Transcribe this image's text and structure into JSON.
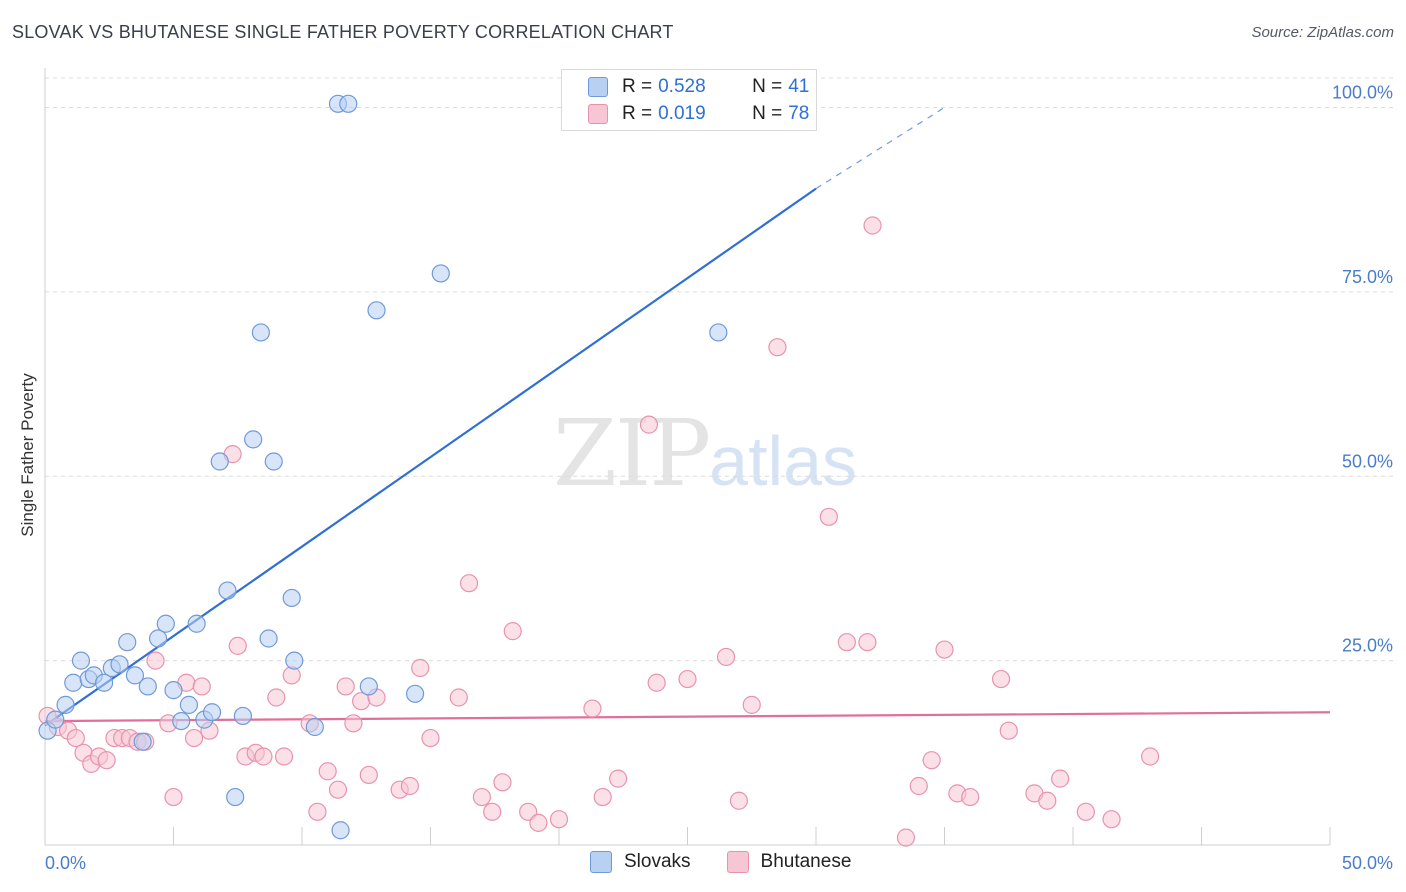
{
  "title": "SLOVAK VS BHUTANESE SINGLE FATHER POVERTY CORRELATION CHART",
  "source": "Source: ZipAtlas.com",
  "watermark": {
    "zip": "ZIP",
    "atlas": "atlas"
  },
  "colors": {
    "slovaks_fill": "#b8d0f2",
    "slovaks_stroke": "#6f9ad8",
    "slovaks_line": "#2f6fd6",
    "bhutanese_fill": "#f7c6d4",
    "bhutanese_stroke": "#e893ae",
    "bhutanese_line": "#e0709a"
  },
  "legend": {
    "slovaks": {
      "r_label": "R =",
      "r_value": "0.528",
      "n_label": "N =",
      "n_value": "41"
    },
    "bhutanese": {
      "r_label": "R =",
      "r_value": "0.019",
      "n_label": "N =",
      "n_value": "78"
    }
  },
  "chart_data": {
    "type": "scatter",
    "title": "SLOVAK VS BHUTANESE SINGLE FATHER POVERTY CORRELATION CHART",
    "xlabel": "",
    "ylabel": "Single Father Poverty",
    "xlim": [
      0,
      50
    ],
    "ylim": [
      0,
      100
    ],
    "x_tick_labels": [
      "0.0%",
      "50.0%"
    ],
    "y_tick_labels": [
      "25.0%",
      "50.0%",
      "75.0%",
      "100.0%"
    ],
    "y_ticks": [
      25,
      50,
      75,
      100
    ],
    "grid": true,
    "legend_position": "top-center",
    "series": [
      {
        "name": "Slovaks",
        "regression": {
          "x0": 0,
          "y0": 16.2,
          "x1": 30,
          "y1": 89,
          "dash_to_x": 35,
          "dash_to_y": 100
        },
        "points": [
          [
            0.1,
            15.5
          ],
          [
            0.4,
            17.0
          ],
          [
            0.8,
            19.0
          ],
          [
            1.1,
            22.0
          ],
          [
            1.4,
            25.0
          ],
          [
            1.7,
            22.5
          ],
          [
            1.9,
            23.0
          ],
          [
            2.3,
            22.0
          ],
          [
            2.6,
            24.0
          ],
          [
            2.9,
            24.5
          ],
          [
            3.2,
            27.5
          ],
          [
            3.5,
            23.0
          ],
          [
            3.8,
            14.0
          ],
          [
            4.0,
            21.5
          ],
          [
            4.4,
            28.0
          ],
          [
            4.7,
            30.0
          ],
          [
            5.0,
            21.0
          ],
          [
            5.3,
            16.8
          ],
          [
            5.6,
            19.0
          ],
          [
            5.9,
            30.0
          ],
          [
            6.2,
            17.0
          ],
          [
            6.5,
            18.0
          ],
          [
            6.8,
            52.0
          ],
          [
            7.1,
            34.5
          ],
          [
            7.4,
            6.5
          ],
          [
            7.7,
            17.5
          ],
          [
            8.1,
            55.0
          ],
          [
            8.4,
            69.5
          ],
          [
            8.7,
            28.0
          ],
          [
            8.9,
            52.0
          ],
          [
            9.6,
            33.5
          ],
          [
            9.7,
            25.0
          ],
          [
            10.5,
            16.0
          ],
          [
            11.4,
            100.5
          ],
          [
            11.8,
            100.5
          ],
          [
            11.5,
            2.0
          ],
          [
            12.6,
            21.5
          ],
          [
            12.9,
            72.5
          ],
          [
            14.4,
            20.5
          ],
          [
            15.4,
            77.5
          ],
          [
            26.2,
            69.5
          ]
        ]
      },
      {
        "name": "Bhutanese",
        "regression": {
          "x0": 0,
          "y0": 16.8,
          "x1": 50,
          "y1": 18.0
        },
        "points": [
          [
            0.1,
            17.5
          ],
          [
            0.5,
            16.0
          ],
          [
            0.9,
            15.5
          ],
          [
            1.2,
            14.5
          ],
          [
            1.5,
            12.5
          ],
          [
            1.8,
            11.0
          ],
          [
            2.1,
            12.0
          ],
          [
            2.4,
            11.5
          ],
          [
            2.7,
            14.5
          ],
          [
            3.0,
            14.5
          ],
          [
            3.3,
            14.5
          ],
          [
            3.6,
            14.0
          ],
          [
            3.9,
            14.0
          ],
          [
            4.3,
            25.0
          ],
          [
            4.8,
            16.5
          ],
          [
            5.0,
            6.5
          ],
          [
            5.5,
            22.0
          ],
          [
            5.8,
            14.5
          ],
          [
            6.1,
            21.5
          ],
          [
            6.4,
            15.5
          ],
          [
            7.3,
            53.0
          ],
          [
            7.5,
            27.0
          ],
          [
            7.8,
            12.0
          ],
          [
            8.2,
            12.5
          ],
          [
            8.5,
            12.0
          ],
          [
            9.0,
            20.0
          ],
          [
            9.3,
            12.0
          ],
          [
            9.6,
            23.0
          ],
          [
            10.3,
            16.5
          ],
          [
            10.6,
            4.5
          ],
          [
            11.0,
            10.0
          ],
          [
            11.4,
            7.5
          ],
          [
            11.7,
            21.5
          ],
          [
            12.0,
            16.5
          ],
          [
            12.3,
            19.5
          ],
          [
            12.6,
            9.5
          ],
          [
            12.9,
            20.0
          ],
          [
            13.8,
            7.5
          ],
          [
            14.2,
            8.0
          ],
          [
            14.6,
            24.0
          ],
          [
            15.0,
            14.5
          ],
          [
            16.1,
            20.0
          ],
          [
            16.5,
            35.5
          ],
          [
            17.0,
            6.5
          ],
          [
            17.4,
            4.5
          ],
          [
            17.8,
            8.5
          ],
          [
            18.2,
            29.0
          ],
          [
            18.8,
            4.5
          ],
          [
            19.2,
            3.0
          ],
          [
            20.0,
            3.5
          ],
          [
            21.3,
            18.5
          ],
          [
            21.7,
            6.5
          ],
          [
            22.3,
            9.0
          ],
          [
            23.5,
            57.0
          ],
          [
            23.8,
            22.0
          ],
          [
            25.0,
            22.5
          ],
          [
            26.5,
            25.5
          ],
          [
            27.0,
            6.0
          ],
          [
            27.5,
            19.0
          ],
          [
            28.5,
            67.5
          ],
          [
            30.5,
            44.5
          ],
          [
            31.2,
            27.5
          ],
          [
            32.0,
            27.5
          ],
          [
            32.2,
            84.0
          ],
          [
            33.5,
            1.0
          ],
          [
            34.0,
            8.0
          ],
          [
            34.5,
            11.5
          ],
          [
            35.0,
            26.5
          ],
          [
            35.5,
            7.0
          ],
          [
            36.0,
            6.5
          ],
          [
            37.2,
            22.5
          ],
          [
            37.5,
            15.5
          ],
          [
            38.5,
            7.0
          ],
          [
            39.0,
            6.0
          ],
          [
            39.5,
            9.0
          ],
          [
            40.5,
            4.5
          ],
          [
            41.5,
            3.5
          ],
          [
            43.0,
            12.0
          ]
        ]
      }
    ]
  },
  "bottom_legend": [
    {
      "label": "Slovaks"
    },
    {
      "label": "Bhutanese"
    }
  ]
}
